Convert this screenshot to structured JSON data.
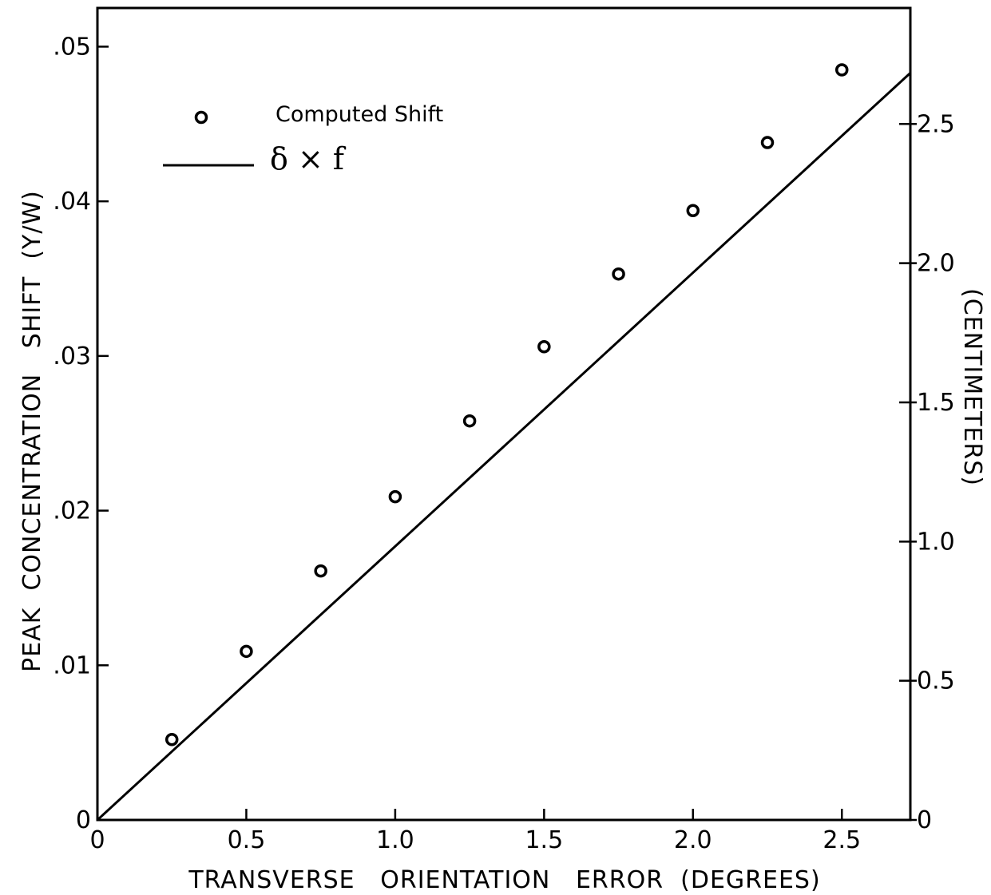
{
  "chart_data": {
    "type": "scatter",
    "title": "",
    "xlabel": "TRANSVERSE   ORIENTATION   ERROR  (DEGREES)",
    "ylabel": "PEAK  CONCENTRATION   SHIFT  (Y/W)",
    "y2label": "(CENTIMETERS)",
    "xlim": [
      0,
      2.73
    ],
    "ylim": [
      0,
      0.0525
    ],
    "y2lim": [
      0,
      2.9167
    ],
    "x_ticks": [
      "0",
      "0.5",
      "1.0",
      "1.5",
      "2.0",
      "2.5"
    ],
    "x_tick_values": [
      0,
      0.5,
      1.0,
      1.5,
      2.0,
      2.5
    ],
    "y_ticks": [
      "0",
      ".01",
      ".02",
      ".03",
      ".04",
      ".05"
    ],
    "y_tick_values": [
      0,
      0.01,
      0.02,
      0.03,
      0.04,
      0.05
    ],
    "y2_ticks": [
      "0",
      "0.5",
      "1.0",
      "1.5",
      "2.0",
      "2.5"
    ],
    "y2_tick_values": [
      0,
      0.5,
      1.0,
      1.5,
      2.0,
      2.5
    ],
    "grid": false,
    "legend_position": "top-left",
    "series": [
      {
        "name": "Computed Shift",
        "kind": "markers",
        "marker": "open-circle",
        "x": [
          0.25,
          0.5,
          0.75,
          1.0,
          1.25,
          1.5,
          1.75,
          2.0,
          2.25,
          2.5
        ],
        "y": [
          0.0052,
          0.0109,
          0.0161,
          0.0209,
          0.0258,
          0.0306,
          0.0353,
          0.0394,
          0.0438,
          0.0485
        ]
      },
      {
        "name": "δ × f",
        "kind": "line",
        "x": [
          0,
          2.73
        ],
        "y": [
          0,
          0.0483
        ]
      }
    ],
    "legend": [
      {
        "label": "Computed Shift",
        "symbol": "open-circle"
      },
      {
        "label": "δ × f",
        "symbol": "line"
      }
    ]
  }
}
